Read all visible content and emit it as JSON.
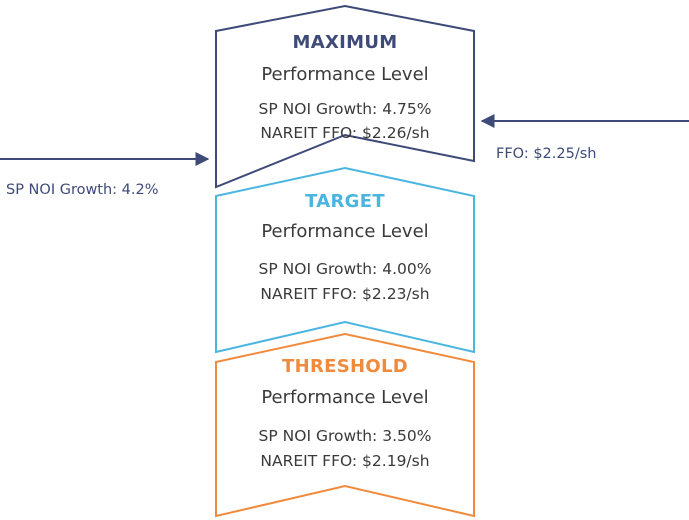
{
  "levels": [
    {
      "title": "MAXIMUM",
      "subtitle": "Performance Level",
      "noi": "SP NOI Growth: 4.75%",
      "ffo": "NAREIT FFO: $2.26/sh",
      "color": "#3e4a78"
    },
    {
      "title": "TARGET",
      "subtitle": "Performance Level",
      "noi": "SP NOI Growth: 4.00%",
      "ffo": "NAREIT FFO: $2.23/sh",
      "color": "#4ab6e0"
    },
    {
      "title": "THRESHOLD",
      "subtitle": "Performance Level",
      "noi": "SP NOI Growth: 3.50%",
      "ffo": "NAREIT FFO: $2.19/sh",
      "color": "#f08a3c"
    }
  ],
  "callouts": {
    "left": {
      "label": "SP NOI Growth: 4.2%"
    },
    "right": {
      "label": "FFO: $2.25/sh"
    },
    "color": "#3e4a78"
  },
  "text_color": "#3a3a3a"
}
